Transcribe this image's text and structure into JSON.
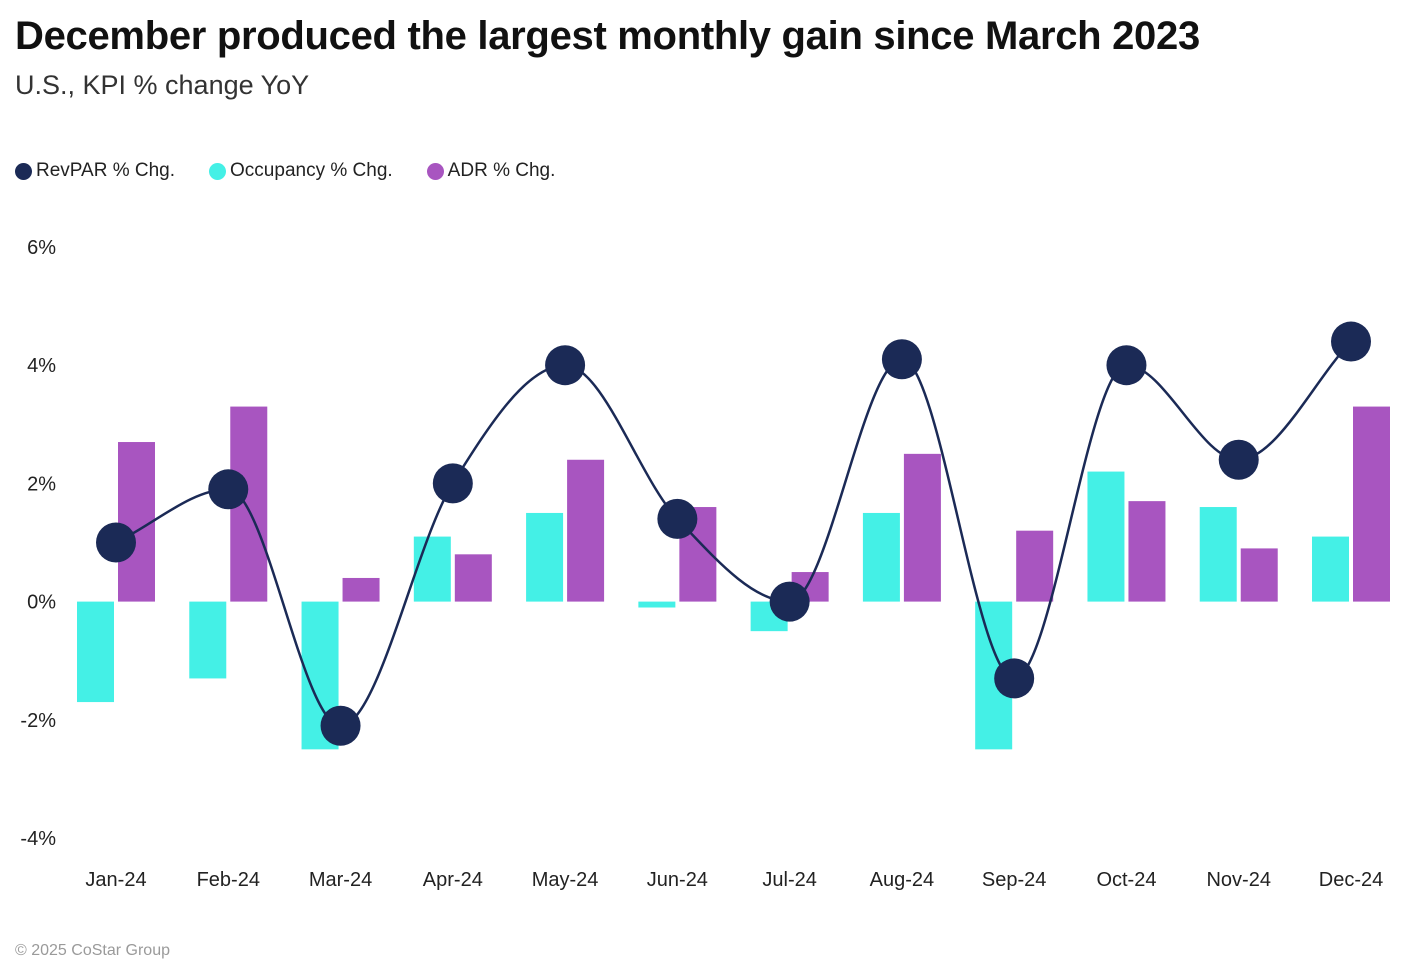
{
  "header": {
    "title": "December produced the largest monthly gain since March 2023",
    "subtitle": "U.S., KPI % change YoY"
  },
  "footer": {
    "copyright": "© 2025 CoStar Group"
  },
  "colors": {
    "revpar": "#1b2a56",
    "occupancy": "#44f0e6",
    "adr": "#a855c0"
  },
  "chart_data": {
    "type": "bar",
    "title": "December produced the largest monthly gain since March 2023",
    "subtitle": "U.S., KPI % change YoY",
    "xlabel": "",
    "ylabel": "",
    "ylim": [
      -4,
      6
    ],
    "yticks": [
      6,
      4,
      2,
      0,
      -2,
      -4
    ],
    "ytick_labels": [
      "6%",
      "4%",
      "2%",
      "0%",
      "-2%",
      "-4%"
    ],
    "legend_position": "top-left",
    "grid": false,
    "categories": [
      "Jan-24",
      "Feb-24",
      "Mar-24",
      "Apr-24",
      "May-24",
      "Jun-24",
      "Jul-24",
      "Aug-24",
      "Sep-24",
      "Oct-24",
      "Nov-24",
      "Dec-24"
    ],
    "series": [
      {
        "name": "RevPAR % Chg.",
        "type": "line",
        "color": "#1b2a56",
        "values": [
          1.0,
          1.9,
          -2.1,
          2.0,
          4.0,
          1.4,
          0.0,
          4.1,
          -1.3,
          4.0,
          2.4,
          4.4
        ]
      },
      {
        "name": "Occupancy % Chg.",
        "type": "bar",
        "color": "#44f0e6",
        "values": [
          -1.7,
          -1.3,
          -2.5,
          1.1,
          1.5,
          -0.1,
          -0.5,
          1.5,
          -2.5,
          2.2,
          1.6,
          1.1
        ]
      },
      {
        "name": "ADR % Chg.",
        "type": "bar",
        "color": "#a855c0",
        "values": [
          2.7,
          3.3,
          0.4,
          0.8,
          2.4,
          1.6,
          0.5,
          2.5,
          1.2,
          1.7,
          0.9,
          3.3
        ]
      }
    ]
  }
}
